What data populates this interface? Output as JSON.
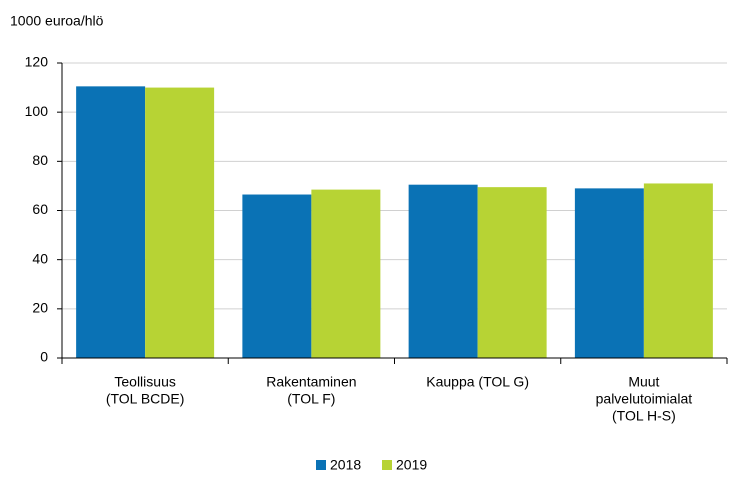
{
  "chart_data": {
    "type": "bar",
    "ylabel": "1000 euroa/hlö",
    "categories": [
      [
        "Teollisuus",
        "(TOL BCDE)"
      ],
      [
        "Rakentaminen",
        "(TOL F)"
      ],
      [
        "Kauppa (TOL G)"
      ],
      [
        "Muut",
        "palvelutoimialat",
        "(TOL H-S)"
      ]
    ],
    "series": [
      {
        "name": "2018",
        "color": "#0a72b5",
        "values": [
          110.5,
          66.5,
          70.5,
          69
        ]
      },
      {
        "name": "2019",
        "color": "#b7d334",
        "values": [
          110,
          68.5,
          69.5,
          71
        ]
      }
    ],
    "ylim": [
      0,
      120
    ],
    "yticks": [
      0,
      20,
      40,
      60,
      80,
      100,
      120
    ],
    "grid": true,
    "legend": "bottom"
  }
}
